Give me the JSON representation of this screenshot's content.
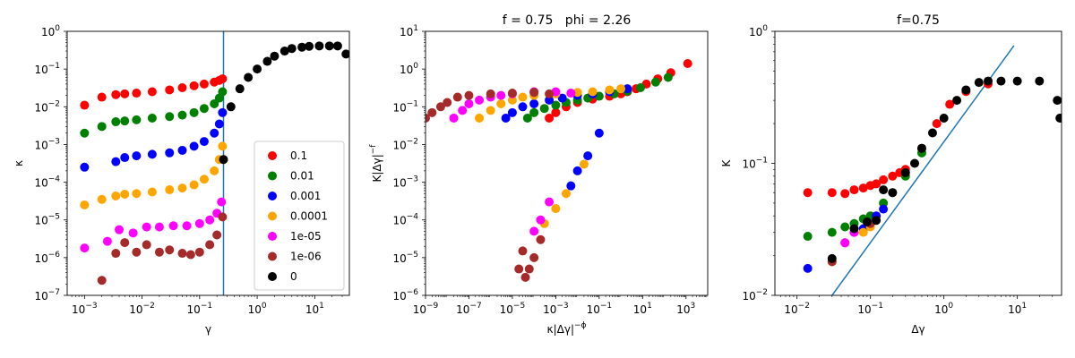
{
  "chart_data": [
    {
      "type": "scatter",
      "title": "",
      "xlabel": "γ",
      "ylabel": "κ",
      "xscale": "log",
      "yscale": "log",
      "xlim": [
        0.0005,
        40
      ],
      "ylim": [
        1e-07,
        1
      ],
      "xticks": [
        {
          "v": 0.001,
          "b": "10",
          "e": "−3"
        },
        {
          "v": 0.01,
          "b": "10",
          "e": "−2"
        },
        {
          "v": 0.1,
          "b": "10",
          "e": "−1"
        },
        {
          "v": 1,
          "b": "10",
          "e": "0"
        },
        {
          "v": 10,
          "b": "10",
          "e": "1"
        }
      ],
      "yticks": [
        {
          "v": 1e-07,
          "b": "10",
          "e": "−7"
        },
        {
          "v": 1e-06,
          "b": "10",
          "e": "−6"
        },
        {
          "v": 1e-05,
          "b": "10",
          "e": "−5"
        },
        {
          "v": 0.0001,
          "b": "10",
          "e": "−4"
        },
        {
          "v": 0.001,
          "b": "10",
          "e": "−3"
        },
        {
          "v": 0.01,
          "b": "10",
          "e": "−2"
        },
        {
          "v": 0.1,
          "b": "10",
          "e": "−1"
        },
        {
          "v": 1,
          "b": "10",
          "e": "0"
        }
      ],
      "vline": {
        "x": 0.26,
        "color": "#1f77b4"
      },
      "legend": {
        "placement": "lower-right"
      },
      "series": [
        {
          "name": "0.1",
          "color": "#ff0000",
          "x": [
            0.001,
            0.002,
            0.0035,
            0.005,
            0.008,
            0.015,
            0.03,
            0.05,
            0.08,
            0.12,
            0.18,
            0.22,
            0.25
          ],
          "y": [
            0.011,
            0.018,
            0.021,
            0.022,
            0.023,
            0.025,
            0.028,
            0.032,
            0.036,
            0.04,
            0.045,
            0.05,
            0.055
          ]
        },
        {
          "name": "0.01",
          "color": "#008000",
          "x": [
            0.001,
            0.002,
            0.0035,
            0.005,
            0.008,
            0.015,
            0.03,
            0.05,
            0.08,
            0.12,
            0.18,
            0.22,
            0.25
          ],
          "y": [
            0.002,
            0.003,
            0.004,
            0.0042,
            0.0045,
            0.005,
            0.0055,
            0.006,
            0.007,
            0.009,
            0.012,
            0.017,
            0.025
          ]
        },
        {
          "name": "0.001",
          "color": "#0000ff",
          "x": [
            0.001,
            0.0035,
            0.005,
            0.008,
            0.015,
            0.03,
            0.05,
            0.08,
            0.12,
            0.18,
            0.22,
            0.25
          ],
          "y": [
            0.00025,
            0.00035,
            0.00045,
            0.0005,
            0.00055,
            0.0006,
            0.0007,
            0.0009,
            0.0012,
            0.002,
            0.0035,
            0.007
          ]
        },
        {
          "name": "0.0001",
          "color": "#ffa500",
          "x": [
            0.001,
            0.002,
            0.0035,
            0.005,
            0.008,
            0.015,
            0.03,
            0.05,
            0.08,
            0.12,
            0.18,
            0.22,
            0.25
          ],
          "y": [
            2.5e-05,
            3.5e-05,
            4.3e-05,
            4.8e-05,
            5e-05,
            5.5e-05,
            6.3e-05,
            7e-05,
            8.5e-05,
            0.00012,
            0.0002,
            0.0004,
            0.0009
          ]
        },
        {
          "name": "1e-05",
          "color": "#ff00ff",
          "x": [
            0.001,
            0.0025,
            0.004,
            0.007,
            0.012,
            0.02,
            0.035,
            0.06,
            0.1,
            0.15,
            0.2,
            0.24
          ],
          "y": [
            1.8e-06,
            2.7e-06,
            5.5e-06,
            4.5e-06,
            6.5e-06,
            6.5e-06,
            7e-06,
            7e-06,
            8e-06,
            1e-05,
            1.5e-05,
            3e-05
          ]
        },
        {
          "name": "1e-06",
          "color": "#a52a2a",
          "x": [
            0.002,
            0.0035,
            0.005,
            0.008,
            0.012,
            0.02,
            0.03,
            0.05,
            0.07,
            0.1,
            0.15,
            0.2,
            0.25
          ],
          "y": [
            2.5e-07,
            1.3e-06,
            2.5e-06,
            1.4e-06,
            2.2e-06,
            1.4e-06,
            1.6e-06,
            1.3e-06,
            1.2e-06,
            1.4e-06,
            2.2e-06,
            4e-06,
            1.2e-05
          ]
        },
        {
          "name": "0",
          "color": "#000000",
          "x": [
            0.26,
            0.35,
            0.5,
            0.7,
            1,
            1.5,
            2,
            3,
            4,
            6,
            8,
            12,
            18,
            25,
            35
          ],
          "y": [
            0.0004,
            0.01,
            0.03,
            0.06,
            0.1,
            0.16,
            0.22,
            0.3,
            0.35,
            0.38,
            0.4,
            0.41,
            0.41,
            0.41,
            0.25
          ]
        }
      ]
    },
    {
      "type": "scatter",
      "title": "f = 0.75   phi = 2.26",
      "xlabel": "κ|Δγ|",
      "xlabel_sup": "−ϕ",
      "ylabel": "K|Δγ|",
      "ylabel_sup": "−f",
      "xscale": "log",
      "yscale": "log",
      "xlim": [
        1e-09,
        10000.0
      ],
      "ylim": [
        1e-06,
        10
      ],
      "xticks": [
        {
          "v": 1e-09,
          "b": "10",
          "e": "−9"
        },
        {
          "v": 1e-07,
          "b": "10",
          "e": "−7"
        },
        {
          "v": 1e-05,
          "b": "10",
          "e": "−5"
        },
        {
          "v": 0.001,
          "b": "10",
          "e": "−3"
        },
        {
          "v": 0.1,
          "b": "10",
          "e": "−1"
        },
        {
          "v": 10,
          "b": "10",
          "e": "1"
        },
        {
          "v": 1000,
          "b": "10",
          "e": "3"
        }
      ],
      "yticks": [
        {
          "v": 1e-06,
          "b": "10",
          "e": "−6"
        },
        {
          "v": 1e-05,
          "b": "10",
          "e": "−5"
        },
        {
          "v": 0.0001,
          "b": "10",
          "e": "−4"
        },
        {
          "v": 0.001,
          "b": "10",
          "e": "−3"
        },
        {
          "v": 0.01,
          "b": "10",
          "e": "−2"
        },
        {
          "v": 0.1,
          "b": "10",
          "e": "−1"
        },
        {
          "v": 1,
          "b": "10",
          "e": "0"
        },
        {
          "v": 10,
          "b": "10",
          "e": "1"
        }
      ],
      "series": [
        {
          "name": "0.1",
          "color": "#ff0000",
          "x": [
            0.0005,
            0.001,
            0.003,
            0.01,
            0.05,
            0.3,
            1,
            2,
            5,
            15,
            50,
            200,
            1200
          ],
          "y": [
            0.05,
            0.07,
            0.1,
            0.13,
            0.16,
            0.19,
            0.22,
            0.25,
            0.3,
            0.4,
            0.55,
            0.8,
            1.4
          ]
        },
        {
          "name": "0.01",
          "color": "#008000",
          "x": [
            5e-05,
            0.0001,
            0.0003,
            0.001,
            0.003,
            0.01,
            0.03,
            0.1,
            0.5,
            2,
            8,
            40,
            150
          ],
          "y": [
            0.05,
            0.07,
            0.09,
            0.11,
            0.13,
            0.15,
            0.17,
            0.19,
            0.22,
            0.26,
            0.32,
            0.45,
            0.6
          ]
        },
        {
          "name": "0.001",
          "color": "#0000ff",
          "x": [
            5e-06,
            1e-05,
            3e-05,
            0.0001,
            0.0005,
            0.002,
            0.01,
            0.05,
            0.3,
            2,
            0.1,
            0.03,
            0.01,
            0.005
          ],
          "y": [
            0.05,
            0.07,
            0.1,
            0.12,
            0.15,
            0.17,
            0.2,
            0.22,
            0.25,
            0.3,
            0.02,
            0.005,
            0.002,
            0.0008
          ]
        },
        {
          "name": "0.0001",
          "color": "#ffa500",
          "x": [
            3e-07,
            1e-06,
            3e-06,
            1e-05,
            3e-05,
            0.0001,
            0.001,
            0.01,
            0.05,
            0.3,
            1,
            0.02,
            0.003,
            0.001,
            0.0003
          ],
          "y": [
            0.05,
            0.08,
            0.12,
            0.15,
            0.18,
            0.2,
            0.22,
            0.24,
            0.25,
            0.28,
            0.3,
            0.003,
            0.0005,
            0.0002,
            8e-05
          ]
        },
        {
          "name": "1e-05",
          "color": "#ff00ff",
          "x": [
            2e-08,
            5e-08,
            1e-07,
            3e-07,
            1e-06,
            3e-06,
            1e-05,
            0.0001,
            0.001,
            0.005,
            0.0005,
            0.0002,
            0.0001
          ],
          "y": [
            0.05,
            0.08,
            0.12,
            0.15,
            0.18,
            0.2,
            0.22,
            0.25,
            0.25,
            0.23,
            0.0003,
            0.0001,
            5e-05
          ]
        },
        {
          "name": "1e-06",
          "color": "#a52a2a",
          "x": [
            1e-09,
            2e-09,
            5e-09,
            1e-08,
            3e-08,
            1e-07,
            1e-06,
            1e-05,
            0.0001,
            0.0005,
            3e-05,
            2e-05,
            4e-05,
            6e-05,
            0.0001,
            0.0002
          ],
          "y": [
            0.05,
            0.07,
            0.1,
            0.13,
            0.18,
            0.2,
            0.22,
            0.23,
            0.24,
            0.22,
            1.5e-05,
            5e-06,
            3e-06,
            5e-06,
            1e-05,
            3e-05
          ]
        },
        {
          "name": "0",
          "color": "#000000",
          "x": [],
          "y": []
        }
      ]
    },
    {
      "type": "scatter",
      "title": "f=0.75",
      "xlabel": "Δγ",
      "ylabel": "K",
      "xscale": "log",
      "yscale": "log",
      "xlim": [
        0.005,
        40
      ],
      "ylim": [
        0.01,
        1
      ],
      "xticks": [
        {
          "v": 0.01,
          "b": "10",
          "e": "−2"
        },
        {
          "v": 0.1,
          "b": "10",
          "e": "−1"
        },
        {
          "v": 1,
          "b": "10",
          "e": "0"
        },
        {
          "v": 10,
          "b": "10",
          "e": "1"
        }
      ],
      "yticks": [
        {
          "v": 0.01,
          "b": "10",
          "e": "−2"
        },
        {
          "v": 0.1,
          "b": "10",
          "e": "−1"
        },
        {
          "v": 1,
          "b": "10",
          "e": "0"
        }
      ],
      "line": {
        "color": "#1f77b4",
        "x": [
          0.03,
          9
        ],
        "y": [
          0.01,
          0.78
        ]
      },
      "series": [
        {
          "name": "0.1",
          "color": "#ff0000",
          "x": [
            0.014,
            0.03,
            0.045,
            0.06,
            0.08,
            0.1,
            0.12,
            0.15,
            0.2,
            0.25,
            0.3,
            0.5,
            0.8,
            1.2,
            2,
            4
          ],
          "y": [
            0.06,
            0.06,
            0.059,
            0.063,
            0.065,
            0.068,
            0.07,
            0.075,
            0.08,
            0.085,
            0.09,
            0.13,
            0.2,
            0.28,
            0.35,
            0.4
          ]
        },
        {
          "name": "0.01",
          "color": "#008000",
          "x": [
            0.014,
            0.03,
            0.045,
            0.06,
            0.08,
            0.1,
            0.15,
            0.2,
            0.3,
            0.5
          ],
          "y": [
            0.028,
            0.03,
            0.033,
            0.035,
            0.038,
            0.04,
            0.05,
            0.06,
            0.08,
            0.12
          ]
        },
        {
          "name": "0.001",
          "color": "#0000ff",
          "x": [
            0.014,
            0.045,
            0.06,
            0.08,
            0.1,
            0.12,
            0.15
          ],
          "y": [
            0.016,
            0.025,
            0.03,
            0.032,
            0.035,
            0.04,
            0.045
          ]
        },
        {
          "name": "0.0001",
          "color": "#ffa500",
          "x": [
            0.03,
            0.045,
            0.08,
            0.1
          ],
          "y": [
            0.018,
            0.025,
            0.03,
            0.033
          ]
        },
        {
          "name": "1e-05",
          "color": "#ff00ff",
          "x": [
            0.045,
            0.06
          ],
          "y": [
            0.025,
            0.03
          ]
        },
        {
          "name": "1e-06",
          "color": "#a52a2a",
          "x": [
            0.03,
            0.1
          ],
          "y": [
            0.018,
            0.035
          ]
        },
        {
          "name": "0",
          "color": "#000000",
          "x": [
            0.03,
            0.06,
            0.09,
            0.12,
            0.15,
            0.2,
            0.3,
            0.4,
            0.5,
            0.7,
            1,
            1.5,
            2,
            3,
            4,
            6,
            10,
            20,
            35,
            38
          ],
          "y": [
            0.019,
            0.032,
            0.036,
            0.037,
            0.063,
            0.06,
            0.085,
            0.1,
            0.13,
            0.17,
            0.22,
            0.3,
            0.36,
            0.41,
            0.42,
            0.42,
            0.42,
            0.42,
            0.3,
            0.22
          ]
        }
      ]
    }
  ]
}
